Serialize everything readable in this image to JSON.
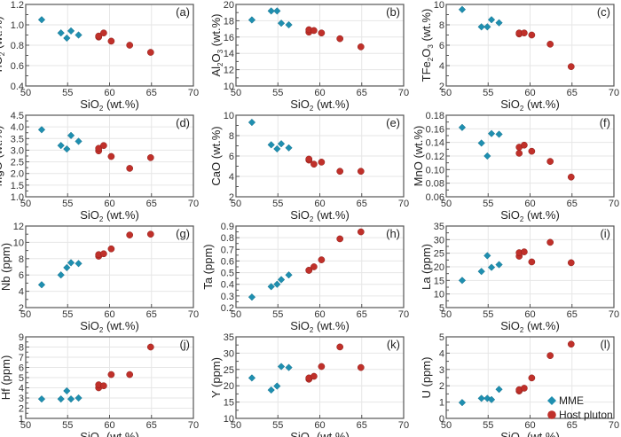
{
  "chart_data": [
    {
      "type": "scatter",
      "panel": "(a)",
      "xlabel": "SiO2 (wt.%)",
      "ylabel": "TiO2 (wt.%)",
      "xlim": [
        50,
        70
      ],
      "ylim": [
        0.4,
        1.2
      ],
      "xticks": [
        50,
        55,
        60,
        65,
        70
      ],
      "yticks": [
        0.4,
        0.6,
        0.8,
        1.0,
        1.2
      ],
      "ytick_labels": [
        "0.4",
        "0.6",
        "0.8",
        "1.0",
        "1.2"
      ],
      "series": [
        {
          "name": "MME",
          "x": [
            51.9,
            54.2,
            54.9,
            55.4,
            56.3
          ],
          "y": [
            1.05,
            0.92,
            0.87,
            0.94,
            0.9
          ]
        },
        {
          "name": "Host pluton",
          "x": [
            58.7,
            58.7,
            59.3,
            60.2,
            62.4,
            64.9
          ],
          "y": [
            0.88,
            0.89,
            0.92,
            0.84,
            0.8,
            0.73
          ]
        }
      ]
    },
    {
      "type": "scatter",
      "panel": "(b)",
      "xlabel": "SiO2 (wt.%)",
      "ylabel": "Al2O3 (wt.%)",
      "xlim": [
        50,
        70
      ],
      "ylim": [
        10,
        20
      ],
      "xticks": [
        50,
        55,
        60,
        65,
        70
      ],
      "yticks": [
        10,
        12,
        14,
        16,
        18,
        20
      ],
      "ytick_labels": [
        "10",
        "12",
        "14",
        "16",
        "18",
        "20"
      ],
      "series": [
        {
          "name": "MME",
          "x": [
            51.9,
            54.2,
            54.9,
            55.4,
            56.3
          ],
          "y": [
            18.1,
            19.2,
            19.2,
            17.7,
            17.5
          ]
        },
        {
          "name": "Host pluton",
          "x": [
            58.7,
            58.7,
            59.3,
            60.2,
            62.4,
            64.9
          ],
          "y": [
            16.6,
            16.9,
            16.8,
            16.5,
            15.8,
            14.8
          ]
        }
      ]
    },
    {
      "type": "scatter",
      "panel": "(c)",
      "xlabel": "SiO2 (wt.%)",
      "ylabel": "TFe2O3 (wt.%)",
      "xlim": [
        50,
        70
      ],
      "ylim": [
        2,
        10
      ],
      "xticks": [
        50,
        55,
        60,
        65,
        70
      ],
      "yticks": [
        2,
        4,
        6,
        8,
        10
      ],
      "ytick_labels": [
        "2",
        "4",
        "6",
        "8",
        "10"
      ],
      "series": [
        {
          "name": "MME",
          "x": [
            51.9,
            54.2,
            54.9,
            55.4,
            56.3
          ],
          "y": [
            9.5,
            7.8,
            7.8,
            8.5,
            8.2
          ]
        },
        {
          "name": "Host pluton",
          "x": [
            58.7,
            58.7,
            59.3,
            60.2,
            62.4,
            64.9
          ],
          "y": [
            7.1,
            7.2,
            7.2,
            7.0,
            6.1,
            3.9
          ]
        }
      ]
    },
    {
      "type": "scatter",
      "panel": "(d)",
      "xlabel": "SiO2 (wt.%)",
      "ylabel": "MgO (wt.%)",
      "xlim": [
        50,
        70
      ],
      "ylim": [
        1.0,
        4.5
      ],
      "xticks": [
        50,
        55,
        60,
        65,
        70
      ],
      "yticks": [
        1.0,
        1.5,
        2.0,
        2.5,
        3.0,
        3.5,
        4.0,
        4.5
      ],
      "ytick_labels": [
        "1.0",
        "1.5",
        "2.0",
        "2.5",
        "3.0",
        "3.5",
        "4.0",
        "4.5"
      ],
      "series": [
        {
          "name": "MME",
          "x": [
            51.9,
            54.2,
            54.9,
            55.4,
            56.3
          ],
          "y": [
            3.88,
            3.2,
            3.05,
            3.63,
            3.38
          ]
        },
        {
          "name": "Host pluton",
          "x": [
            58.7,
            58.7,
            59.3,
            60.2,
            62.4,
            64.9
          ],
          "y": [
            2.97,
            3.08,
            3.2,
            2.73,
            2.22,
            2.68
          ]
        }
      ]
    },
    {
      "type": "scatter",
      "panel": "(e)",
      "xlabel": "SiO2 (wt.%)",
      "ylabel": "CaO (wt.%)",
      "xlim": [
        50,
        70
      ],
      "ylim": [
        2,
        10
      ],
      "xticks": [
        50,
        55,
        60,
        65,
        70
      ],
      "yticks": [
        2,
        4,
        6,
        8,
        10
      ],
      "ytick_labels": [
        "2",
        "4",
        "6",
        "8",
        "10"
      ],
      "series": [
        {
          "name": "MME",
          "x": [
            51.9,
            54.2,
            54.9,
            55.4,
            56.3
          ],
          "y": [
            9.3,
            7.1,
            6.7,
            7.2,
            6.8
          ]
        },
        {
          "name": "Host pluton",
          "x": [
            58.7,
            58.7,
            59.3,
            60.2,
            62.4,
            64.9
          ],
          "y": [
            5.6,
            5.7,
            5.2,
            5.4,
            4.5,
            4.5
          ]
        }
      ]
    },
    {
      "type": "scatter",
      "panel": "(f)",
      "xlabel": "SiO2 (wt.%)",
      "ylabel": "MnO (wt.%)",
      "xlim": [
        50,
        70
      ],
      "ylim": [
        0.06,
        0.18
      ],
      "xticks": [
        50,
        55,
        60,
        65,
        70
      ],
      "yticks": [
        0.06,
        0.08,
        0.1,
        0.12,
        0.14,
        0.16,
        0.18
      ],
      "ytick_labels": [
        "0.06",
        "0.08",
        "0.10",
        "0.12",
        "0.14",
        "0.16",
        "0.18"
      ],
      "series": [
        {
          "name": "MME",
          "x": [
            51.9,
            54.2,
            54.9,
            55.4,
            56.3
          ],
          "y": [
            0.162,
            0.139,
            0.12,
            0.153,
            0.152
          ]
        },
        {
          "name": "Host pluton",
          "x": [
            58.7,
            58.7,
            59.3,
            60.2,
            62.4,
            64.9
          ],
          "y": [
            0.124,
            0.133,
            0.136,
            0.127,
            0.112,
            0.089
          ]
        }
      ]
    },
    {
      "type": "scatter",
      "panel": "(g)",
      "xlabel": "SiO2 (wt.%)",
      "ylabel": "Nb (ppm)",
      "xlim": [
        50,
        70
      ],
      "ylim": [
        2,
        12
      ],
      "xticks": [
        50,
        55,
        60,
        65,
        70
      ],
      "yticks": [
        2,
        4,
        6,
        8,
        10,
        12
      ],
      "ytick_labels": [
        "2",
        "4",
        "6",
        "8",
        "10",
        "12"
      ],
      "series": [
        {
          "name": "MME",
          "x": [
            51.9,
            54.2,
            54.9,
            55.4,
            56.3
          ],
          "y": [
            4.8,
            6.0,
            6.9,
            7.5,
            7.4
          ]
        },
        {
          "name": "Host pluton",
          "x": [
            58.7,
            58.7,
            59.3,
            60.2,
            62.4,
            64.9
          ],
          "y": [
            8.3,
            8.5,
            8.6,
            9.2,
            10.9,
            11.0
          ]
        }
      ]
    },
    {
      "type": "scatter",
      "panel": "(h)",
      "xlabel": "SiO2 (wt.%)",
      "ylabel": "Ta (ppm)",
      "xlim": [
        50,
        70
      ],
      "ylim": [
        0.2,
        0.9
      ],
      "xticks": [
        50,
        55,
        60,
        65,
        70
      ],
      "yticks": [
        0.2,
        0.3,
        0.4,
        0.5,
        0.6,
        0.7,
        0.8,
        0.9
      ],
      "ytick_labels": [
        "0.2",
        "0.3",
        "0.4",
        "0.5",
        "0.6",
        "0.7",
        "0.8",
        "0.9"
      ],
      "series": [
        {
          "name": "MME",
          "x": [
            51.9,
            54.2,
            54.9,
            55.4,
            56.3
          ],
          "y": [
            0.29,
            0.38,
            0.4,
            0.44,
            0.48
          ]
        },
        {
          "name": "Host pluton",
          "x": [
            58.7,
            58.7,
            59.3,
            60.2,
            62.4,
            64.9
          ],
          "y": [
            0.52,
            0.52,
            0.55,
            0.61,
            0.79,
            0.85
          ]
        }
      ]
    },
    {
      "type": "scatter",
      "panel": "(i)",
      "xlabel": "SiO2 (wt.%)",
      "ylabel": "La (ppm)",
      "xlim": [
        50,
        70
      ],
      "ylim": [
        5,
        35
      ],
      "xticks": [
        50,
        55,
        60,
        65,
        70
      ],
      "yticks": [
        5,
        10,
        15,
        20,
        25,
        30,
        35
      ],
      "ytick_labels": [
        "5",
        "10",
        "15",
        "20",
        "25",
        "30",
        "35"
      ],
      "series": [
        {
          "name": "MME",
          "x": [
            51.9,
            54.2,
            54.9,
            55.4,
            56.3
          ],
          "y": [
            15.0,
            18.3,
            24.1,
            19.8,
            20.8
          ]
        },
        {
          "name": "Host pluton",
          "x": [
            58.7,
            58.7,
            59.3,
            60.2,
            62.4,
            64.9
          ],
          "y": [
            23.9,
            25.2,
            25.5,
            21.8,
            29.0,
            21.5
          ]
        }
      ]
    },
    {
      "type": "scatter",
      "panel": "(j)",
      "xlabel": "SiO2 (wt.%)",
      "ylabel": "Hf (ppm)",
      "xlim": [
        50,
        70
      ],
      "ylim": [
        1,
        9
      ],
      "xticks": [
        50,
        55,
        60,
        65,
        70
      ],
      "yticks": [
        1,
        2,
        3,
        4,
        5,
        6,
        7,
        8,
        9
      ],
      "ytick_labels": [
        "1",
        "2",
        "3",
        "4",
        "5",
        "6",
        "7",
        "8",
        "9"
      ],
      "series": [
        {
          "name": "MME",
          "x": [
            51.9,
            54.2,
            54.9,
            55.4,
            56.3
          ],
          "y": [
            2.9,
            2.9,
            3.7,
            2.9,
            3.0
          ]
        },
        {
          "name": "Host pluton",
          "x": [
            58.7,
            58.7,
            59.3,
            60.2,
            62.4,
            64.9
          ],
          "y": [
            4.0,
            4.3,
            4.2,
            5.3,
            5.3,
            8.0
          ]
        }
      ]
    },
    {
      "type": "scatter",
      "panel": "(k)",
      "xlabel": "SiO2 (wt.%)",
      "ylabel": "Y (ppm)",
      "xlim": [
        50,
        70
      ],
      "ylim": [
        10,
        35
      ],
      "xticks": [
        50,
        55,
        60,
        65,
        70
      ],
      "yticks": [
        10,
        15,
        20,
        25,
        30,
        35
      ],
      "ytick_labels": [
        "10",
        "15",
        "20",
        "25",
        "30",
        "35"
      ],
      "series": [
        {
          "name": "MME",
          "x": [
            51.9,
            54.2,
            54.9,
            55.4,
            56.3
          ],
          "y": [
            22.4,
            18.7,
            19.9,
            25.9,
            25.6
          ]
        },
        {
          "name": "Host pluton",
          "x": [
            58.7,
            58.7,
            59.3,
            60.2,
            62.4,
            64.9
          ],
          "y": [
            22.0,
            22.4,
            22.9,
            25.9,
            31.9,
            25.6
          ]
        }
      ]
    },
    {
      "type": "scatter",
      "panel": "(l)",
      "xlabel": "SiO2 (wt.%)",
      "ylabel": "U (ppm)",
      "xlim": [
        50,
        70
      ],
      "ylim": [
        0,
        5
      ],
      "xticks": [
        50,
        55,
        60,
        65,
        70
      ],
      "yticks": [
        0,
        1,
        2,
        3,
        4,
        5
      ],
      "ytick_labels": [
        "0",
        "1",
        "2",
        "3",
        "4",
        "5"
      ],
      "series": [
        {
          "name": "MME",
          "x": [
            51.9,
            54.2,
            54.9,
            55.4,
            56.3
          ],
          "y": [
            0.97,
            1.23,
            1.23,
            1.15,
            1.78
          ]
        },
        {
          "name": "Host pluton",
          "x": [
            58.7,
            58.7,
            59.3,
            60.2,
            62.4,
            64.9
          ],
          "y": [
            1.68,
            1.76,
            1.85,
            2.48,
            3.85,
            4.55
          ]
        }
      ]
    }
  ],
  "legend": {
    "location": "panel (l), bottom-right",
    "entries": [
      {
        "label": "MME",
        "marker": "diamond",
        "color": "#1f8fb0"
      },
      {
        "label": "Host pluton",
        "marker": "circle",
        "color": "#c0302a"
      }
    ]
  },
  "colors": {
    "mme": "#1f8fb0",
    "host": "#c0302a",
    "axis": "#555555",
    "grid": "#e6e6e6"
  }
}
